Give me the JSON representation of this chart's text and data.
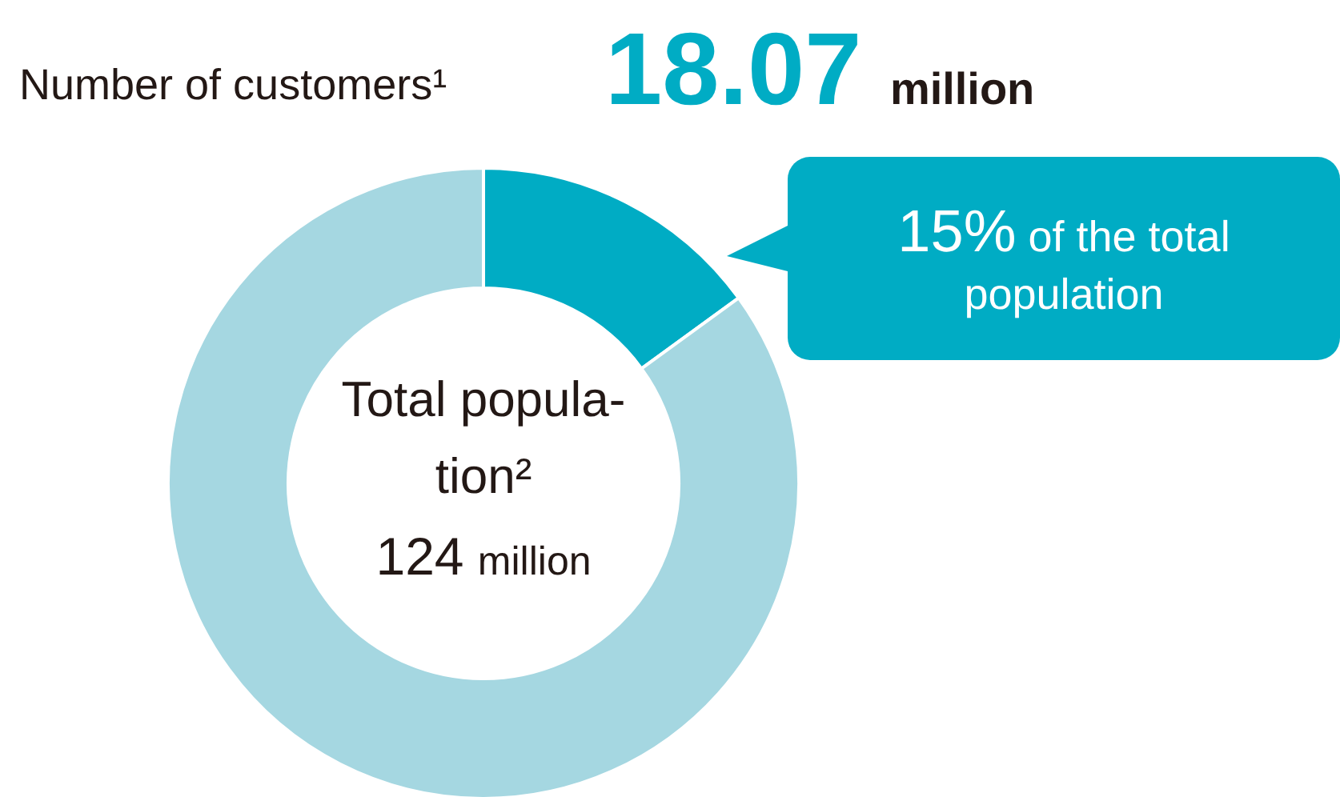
{
  "chart_data": {
    "type": "donut",
    "title": "Number of customers¹",
    "subtitle": "18.07 million",
    "categories": [
      null,
      null
    ],
    "values": [
      15,
      85
    ],
    "colors": [
      "#00acc4",
      "#a5d7e1"
    ],
    "annotations": [
      "15% of the total population",
      "Total popula-\ntion²",
      "124 million"
    ]
  }
}
